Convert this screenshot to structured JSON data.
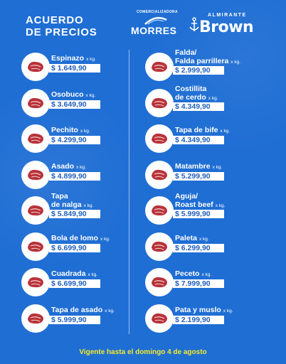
{
  "header": {
    "title_line1": "ACUERDO",
    "title_line2": "DE PRECIOS",
    "morres_top": "COMERCIALIZADORA",
    "morres_name": "MORRES",
    "brown_top": "ALMIRANTE",
    "brown_name": "Brown"
  },
  "unit_label": "x kg.",
  "products": [
    {
      "line1": "Espinazo",
      "line2": "",
      "price": "$ 1.649,90"
    },
    {
      "line1": "Falda/",
      "line2": "Falda parrillera",
      "price": "$ 2.999,90"
    },
    {
      "line1": "Osobuco",
      "line2": "",
      "price": "$ 3.649,90"
    },
    {
      "line1": "Costillita",
      "line2": "de cerdo",
      "price": "$ 4.349,90"
    },
    {
      "line1": "Pechito",
      "line2": "",
      "price": "$ 4.299,90"
    },
    {
      "line1": "Tapa de bife",
      "line2": "",
      "price": "$ 4.349,90"
    },
    {
      "line1": "Asado",
      "line2": "",
      "price": "$ 4.899,90"
    },
    {
      "line1": "Matambre",
      "line2": "",
      "price": "$ 5.299,90"
    },
    {
      "line1": "Tapa",
      "line2": "de nalga",
      "price": "$ 5.849,90"
    },
    {
      "line1": "Aguja/",
      "line2": "Roast beef",
      "price": "$ 5.999,90"
    },
    {
      "line1": "Bola de lomo",
      "line2": "",
      "price": "$ 6.699,90"
    },
    {
      "line1": "Paleta",
      "line2": "",
      "price": "$ 6.299,90"
    },
    {
      "line1": "Cuadrada",
      "line2": "",
      "price": "$ 6.699,90"
    },
    {
      "line1": "Peceto",
      "line2": "",
      "price": "$ 7.999,90"
    },
    {
      "line1": "Tapa de asado",
      "line2": "",
      "price": "$ 5.999,90"
    },
    {
      "line1": "Pata y muslo",
      "line2": "",
      "price": "$ 2.199,90"
    }
  ],
  "footer": {
    "validity": "Vigente hasta el domingo 4 de agosto"
  },
  "colors": {
    "background": "#1f6ed4",
    "price_text": "#1f5fbf",
    "footer_text": "#f3ea2a",
    "meat": "#b8323a"
  }
}
